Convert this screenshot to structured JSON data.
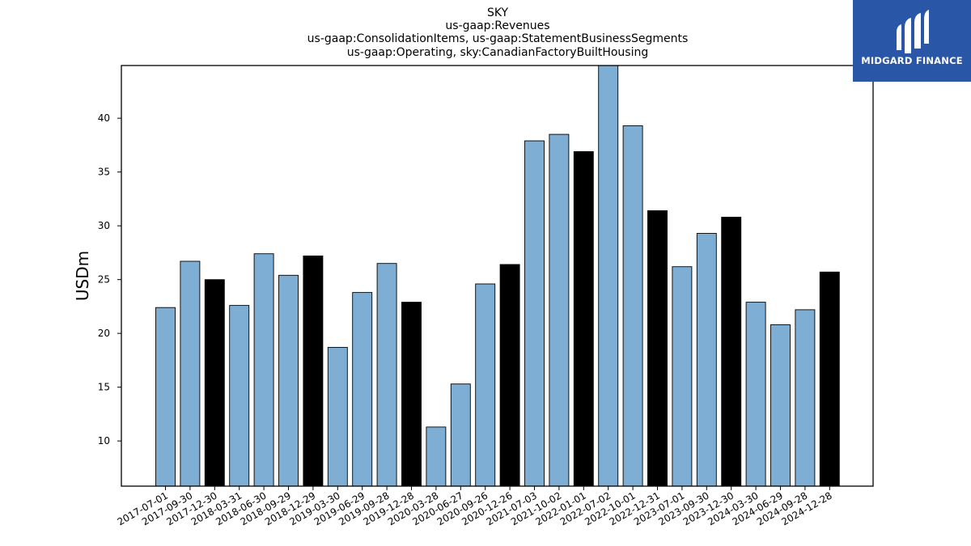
{
  "chart_data": {
    "type": "bar",
    "title_lines": [
      "SKY",
      "us-gaap:Revenues",
      "us-gaap:ConsolidationItems, us-gaap:StatementBusinessSegments",
      "us-gaap:Operating, sky:CanadianFactoryBuiltHousing"
    ],
    "xlabel": "",
    "ylabel": "USDm",
    "ylim": [
      5.8,
      44.9
    ],
    "yticks": [
      10,
      15,
      20,
      25,
      30,
      35,
      40
    ],
    "categories": [
      "2017-07-01",
      "2017-09-30",
      "2017-12-30",
      "2018-03-31",
      "2018-06-30",
      "2018-09-29",
      "2018-12-29",
      "2019-03-30",
      "2019-06-29",
      "2019-09-28",
      "2019-12-28",
      "2020-03-28",
      "2020-06-27",
      "2020-09-26",
      "2020-12-26",
      "2021-07-03",
      "2021-10-02",
      "2022-01-01",
      "2022-07-02",
      "2022-10-01",
      "2022-12-31",
      "2023-07-01",
      "2023-09-30",
      "2023-12-30",
      "2024-03-30",
      "2024-06-29",
      "2024-09-28",
      "2024-12-28"
    ],
    "values": [
      22.4,
      26.7,
      25.0,
      22.6,
      27.4,
      25.4,
      27.2,
      18.7,
      23.8,
      26.5,
      22.9,
      11.3,
      15.3,
      24.6,
      26.4,
      37.9,
      38.5,
      36.9,
      44.9,
      39.3,
      31.4,
      26.2,
      29.3,
      30.8,
      22.9,
      20.8,
      22.2,
      25.7
    ],
    "highlight": [
      false,
      false,
      true,
      false,
      false,
      false,
      true,
      false,
      false,
      false,
      true,
      false,
      false,
      false,
      true,
      false,
      false,
      true,
      false,
      false,
      true,
      false,
      false,
      true,
      false,
      false,
      false,
      true
    ],
    "colors": {
      "bar": "#7eaed4",
      "highlight": "#000000",
      "edge": "#000000"
    },
    "grid": false,
    "legend": "none"
  },
  "logo": {
    "text": "MIDGARD FINANCE",
    "background": "#2a56a8",
    "icon": "midgard-logo-icon"
  }
}
